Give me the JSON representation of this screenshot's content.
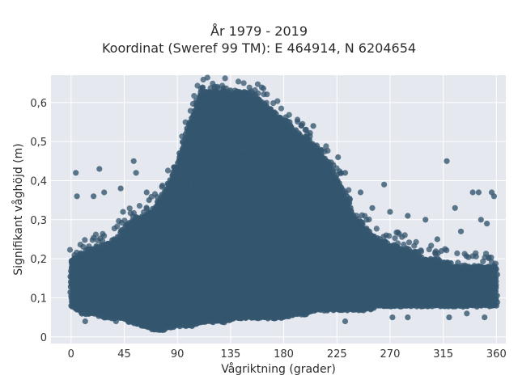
{
  "chart_data": {
    "type": "scatter",
    "title": "År 1979 - 2019",
    "subtitle": "Koordinat (Sweref 99 TM): E 464914, N 6204654",
    "xlabel": "Vågriktning (grader)",
    "ylabel": "Signifikant våghöjd (m)",
    "xlim": [
      -17,
      368
    ],
    "ylim": [
      -0.017,
      0.67
    ],
    "xticks": [
      0,
      45,
      90,
      135,
      180,
      225,
      270,
      315,
      360
    ],
    "xtick_labels": [
      "0",
      "45",
      "90",
      "135",
      "180",
      "225",
      "270",
      "315",
      "360"
    ],
    "yticks": [
      0,
      0.1,
      0.2,
      0.3,
      0.4,
      0.5,
      0.6
    ],
    "ytick_labels": [
      "0",
      "0,1",
      "0,2",
      "0,3",
      "0,4",
      "0,5",
      "0,6"
    ],
    "grid": true,
    "background": "#e5e8ef",
    "marker_color": "#34566e",
    "envelope": {
      "x": [
        0,
        10,
        20,
        30,
        40,
        50,
        60,
        70,
        80,
        90,
        100,
        105,
        110,
        120,
        130,
        140,
        150,
        160,
        170,
        180,
        190,
        200,
        210,
        220,
        230,
        240,
        250,
        260,
        270,
        280,
        290,
        300,
        310,
        320,
        330,
        340,
        350,
        360
      ],
      "upper": [
        0.2,
        0.22,
        0.23,
        0.24,
        0.26,
        0.3,
        0.31,
        0.33,
        0.38,
        0.45,
        0.55,
        0.59,
        0.63,
        0.63,
        0.63,
        0.63,
        0.63,
        0.61,
        0.58,
        0.56,
        0.53,
        0.51,
        0.48,
        0.44,
        0.38,
        0.31,
        0.28,
        0.25,
        0.24,
        0.23,
        0.22,
        0.2,
        0.2,
        0.19,
        0.18,
        0.18,
        0.18,
        0.18
      ],
      "lower": [
        0.08,
        0.06,
        0.06,
        0.05,
        0.05,
        0.04,
        0.03,
        0.02,
        0.02,
        0.03,
        0.03,
        0.03,
        0.04,
        0.04,
        0.04,
        0.05,
        0.05,
        0.05,
        0.05,
        0.05,
        0.06,
        0.06,
        0.07,
        0.07,
        0.07,
        0.07,
        0.07,
        0.08,
        0.08,
        0.08,
        0.08,
        0.08,
        0.08,
        0.08,
        0.08,
        0.08,
        0.08,
        0.08
      ]
    },
    "outliers": [
      {
        "x": 4,
        "y": 0.42
      },
      {
        "x": 5,
        "y": 0.36
      },
      {
        "x": 19,
        "y": 0.36
      },
      {
        "x": 24,
        "y": 0.43
      },
      {
        "x": 28,
        "y": 0.37
      },
      {
        "x": 42,
        "y": 0.38
      },
      {
        "x": 44,
        "y": 0.32
      },
      {
        "x": 53,
        "y": 0.45
      },
      {
        "x": 55,
        "y": 0.42
      },
      {
        "x": 64,
        "y": 0.37
      },
      {
        "x": 66,
        "y": 0.35
      },
      {
        "x": 185,
        "y": 0.55
      },
      {
        "x": 200,
        "y": 0.52
      },
      {
        "x": 205,
        "y": 0.54
      },
      {
        "x": 208,
        "y": 0.49
      },
      {
        "x": 222,
        "y": 0.44
      },
      {
        "x": 226,
        "y": 0.46
      },
      {
        "x": 232,
        "y": 0.42
      },
      {
        "x": 245,
        "y": 0.37
      },
      {
        "x": 255,
        "y": 0.33
      },
      {
        "x": 265,
        "y": 0.39
      },
      {
        "x": 270,
        "y": 0.32
      },
      {
        "x": 285,
        "y": 0.31
      },
      {
        "x": 300,
        "y": 0.3
      },
      {
        "x": 310,
        "y": 0.25
      },
      {
        "x": 318,
        "y": 0.45
      },
      {
        "x": 325,
        "y": 0.33
      },
      {
        "x": 330,
        "y": 0.27
      },
      {
        "x": 340,
        "y": 0.37
      },
      {
        "x": 345,
        "y": 0.37
      },
      {
        "x": 356,
        "y": 0.37
      },
      {
        "x": 358,
        "y": 0.36
      },
      {
        "x": 347,
        "y": 0.3
      },
      {
        "x": 352,
        "y": 0.29
      },
      {
        "x": 232,
        "y": 0.04
      },
      {
        "x": 272,
        "y": 0.05
      },
      {
        "x": 285,
        "y": 0.05
      },
      {
        "x": 320,
        "y": 0.05
      },
      {
        "x": 335,
        "y": 0.06
      },
      {
        "x": 350,
        "y": 0.05
      },
      {
        "x": 12,
        "y": 0.04
      },
      {
        "x": 28,
        "y": 0.05
      },
      {
        "x": 38,
        "y": 0.04
      }
    ]
  }
}
